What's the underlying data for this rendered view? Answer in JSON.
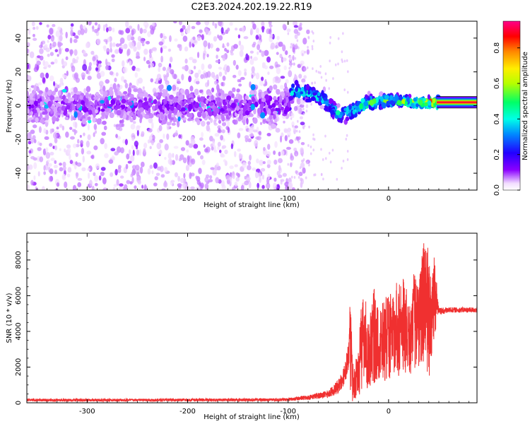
{
  "title": "C2E3.2024.202.19.22.R19",
  "colors": {
    "snr_line": "#f03030",
    "spectrum_faint": "#e3cdf5",
    "spectrum_mid": "#9b3cf0",
    "spectrum_core": "#6a00f0",
    "axis": "#000000"
  },
  "chart_data": [
    {
      "type": "heatmap",
      "name": "spectrogram",
      "xlabel": "Height of straight line (km)",
      "ylabel": "Frequency (Hz)",
      "xlim": [
        -360,
        88
      ],
      "ylim": [
        -50,
        50
      ],
      "x_ticks": [
        -300,
        -200,
        -100,
        0
      ],
      "x_tick_labels": [
        "-300",
        "-200",
        "-100",
        "0"
      ],
      "y_ticks": [
        40,
        20,
        0,
        -20,
        -40
      ],
      "y_tick_labels": [
        "40",
        "20",
        "0",
        "-20",
        "-40"
      ],
      "colorbar": {
        "label": "Normalized spectral amplitude",
        "range": [
          0,
          0.95
        ],
        "ticks": [
          0,
          0.2,
          0.4,
          0.6,
          0.8
        ],
        "tick_labels": [
          "0.0",
          "0.2",
          "0.4",
          "0.6",
          "0.8"
        ]
      },
      "ridge": [
        {
          "x": -360,
          "freq": 0,
          "halfwidth": 6,
          "amp": 0.1
        },
        {
          "x": -100,
          "freq": 0,
          "halfwidth": 6,
          "amp": 0.12
        },
        {
          "x": -95,
          "freq": 10,
          "halfwidth": 3,
          "amp": 0.4
        },
        {
          "x": -80,
          "freq": 7,
          "halfwidth": 3,
          "amp": 0.38
        },
        {
          "x": -65,
          "freq": 4,
          "halfwidth": 3,
          "amp": 0.35
        },
        {
          "x": -50,
          "freq": -5,
          "halfwidth": 3,
          "amp": 0.36
        },
        {
          "x": -38,
          "freq": -4,
          "halfwidth": 3,
          "amp": 0.38
        },
        {
          "x": -25,
          "freq": 1,
          "halfwidth": 3,
          "amp": 0.45
        },
        {
          "x": 0,
          "freq": 3,
          "halfwidth": 2,
          "amp": 0.5
        },
        {
          "x": 30,
          "freq": 2,
          "halfwidth": 2,
          "amp": 0.52
        },
        {
          "x": 50,
          "freq": 2,
          "halfwidth": 2,
          "amp": 0.85
        },
        {
          "x": 88,
          "freq": 2,
          "halfwidth": 2,
          "amp": 0.88
        }
      ]
    },
    {
      "type": "line",
      "name": "snr",
      "xlabel": "Height of straight line (km)",
      "ylabel": "SNR (10 * v/v)",
      "xlim": [
        -360,
        88
      ],
      "ylim": [
        0,
        9500
      ],
      "x_ticks": [
        -300,
        -200,
        -100,
        0
      ],
      "x_tick_labels": [
        "-300",
        "-200",
        "-100",
        "0"
      ],
      "y_ticks": [
        0,
        2000,
        4000,
        6000,
        8000
      ],
      "y_tick_labels": [
        "0",
        "2000",
        "4000",
        "6000",
        "8000"
      ],
      "series": [
        {
          "name": "SNR",
          "x": [
            -360,
            -300,
            -200,
            -120,
            -100,
            -80,
            -60,
            -50,
            -45,
            -40,
            -38,
            -36,
            -34,
            -30,
            -25,
            -20,
            -15,
            -10,
            -5,
            0,
            5,
            10,
            15,
            20,
            25,
            30,
            35,
            40,
            45,
            50,
            60,
            70,
            88
          ],
          "y": [
            150,
            150,
            160,
            170,
            180,
            300,
            500,
            900,
            1500,
            2500,
            5000,
            1200,
            600,
            2000,
            3500,
            2500,
            5000,
            3000,
            4000,
            3800,
            4200,
            3500,
            5500,
            4000,
            5800,
            5000,
            8500,
            4500,
            6500,
            5100,
            5200,
            5200,
            5200
          ],
          "envelope_low": [
            0,
            0,
            0,
            0,
            20,
            60,
            120,
            200,
            300,
            700,
            600,
            50,
            100,
            300,
            800,
            600,
            1000,
            1200,
            1200,
            1300,
            1400,
            1500,
            1700,
            1500,
            1800,
            2000,
            1700,
            1200,
            3500,
            4900,
            5000,
            4900,
            4900
          ],
          "envelope_high": [
            250,
            260,
            260,
            280,
            300,
            500,
            800,
            1500,
            2200,
            3500,
            6100,
            2500,
            2000,
            3500,
            6800,
            4500,
            6600,
            5200,
            5900,
            6000,
            6500,
            7000,
            7100,
            5900,
            7500,
            6500,
            9500,
            9000,
            8500,
            5600,
            5500,
            5400,
            5400
          ]
        }
      ]
    }
  ]
}
